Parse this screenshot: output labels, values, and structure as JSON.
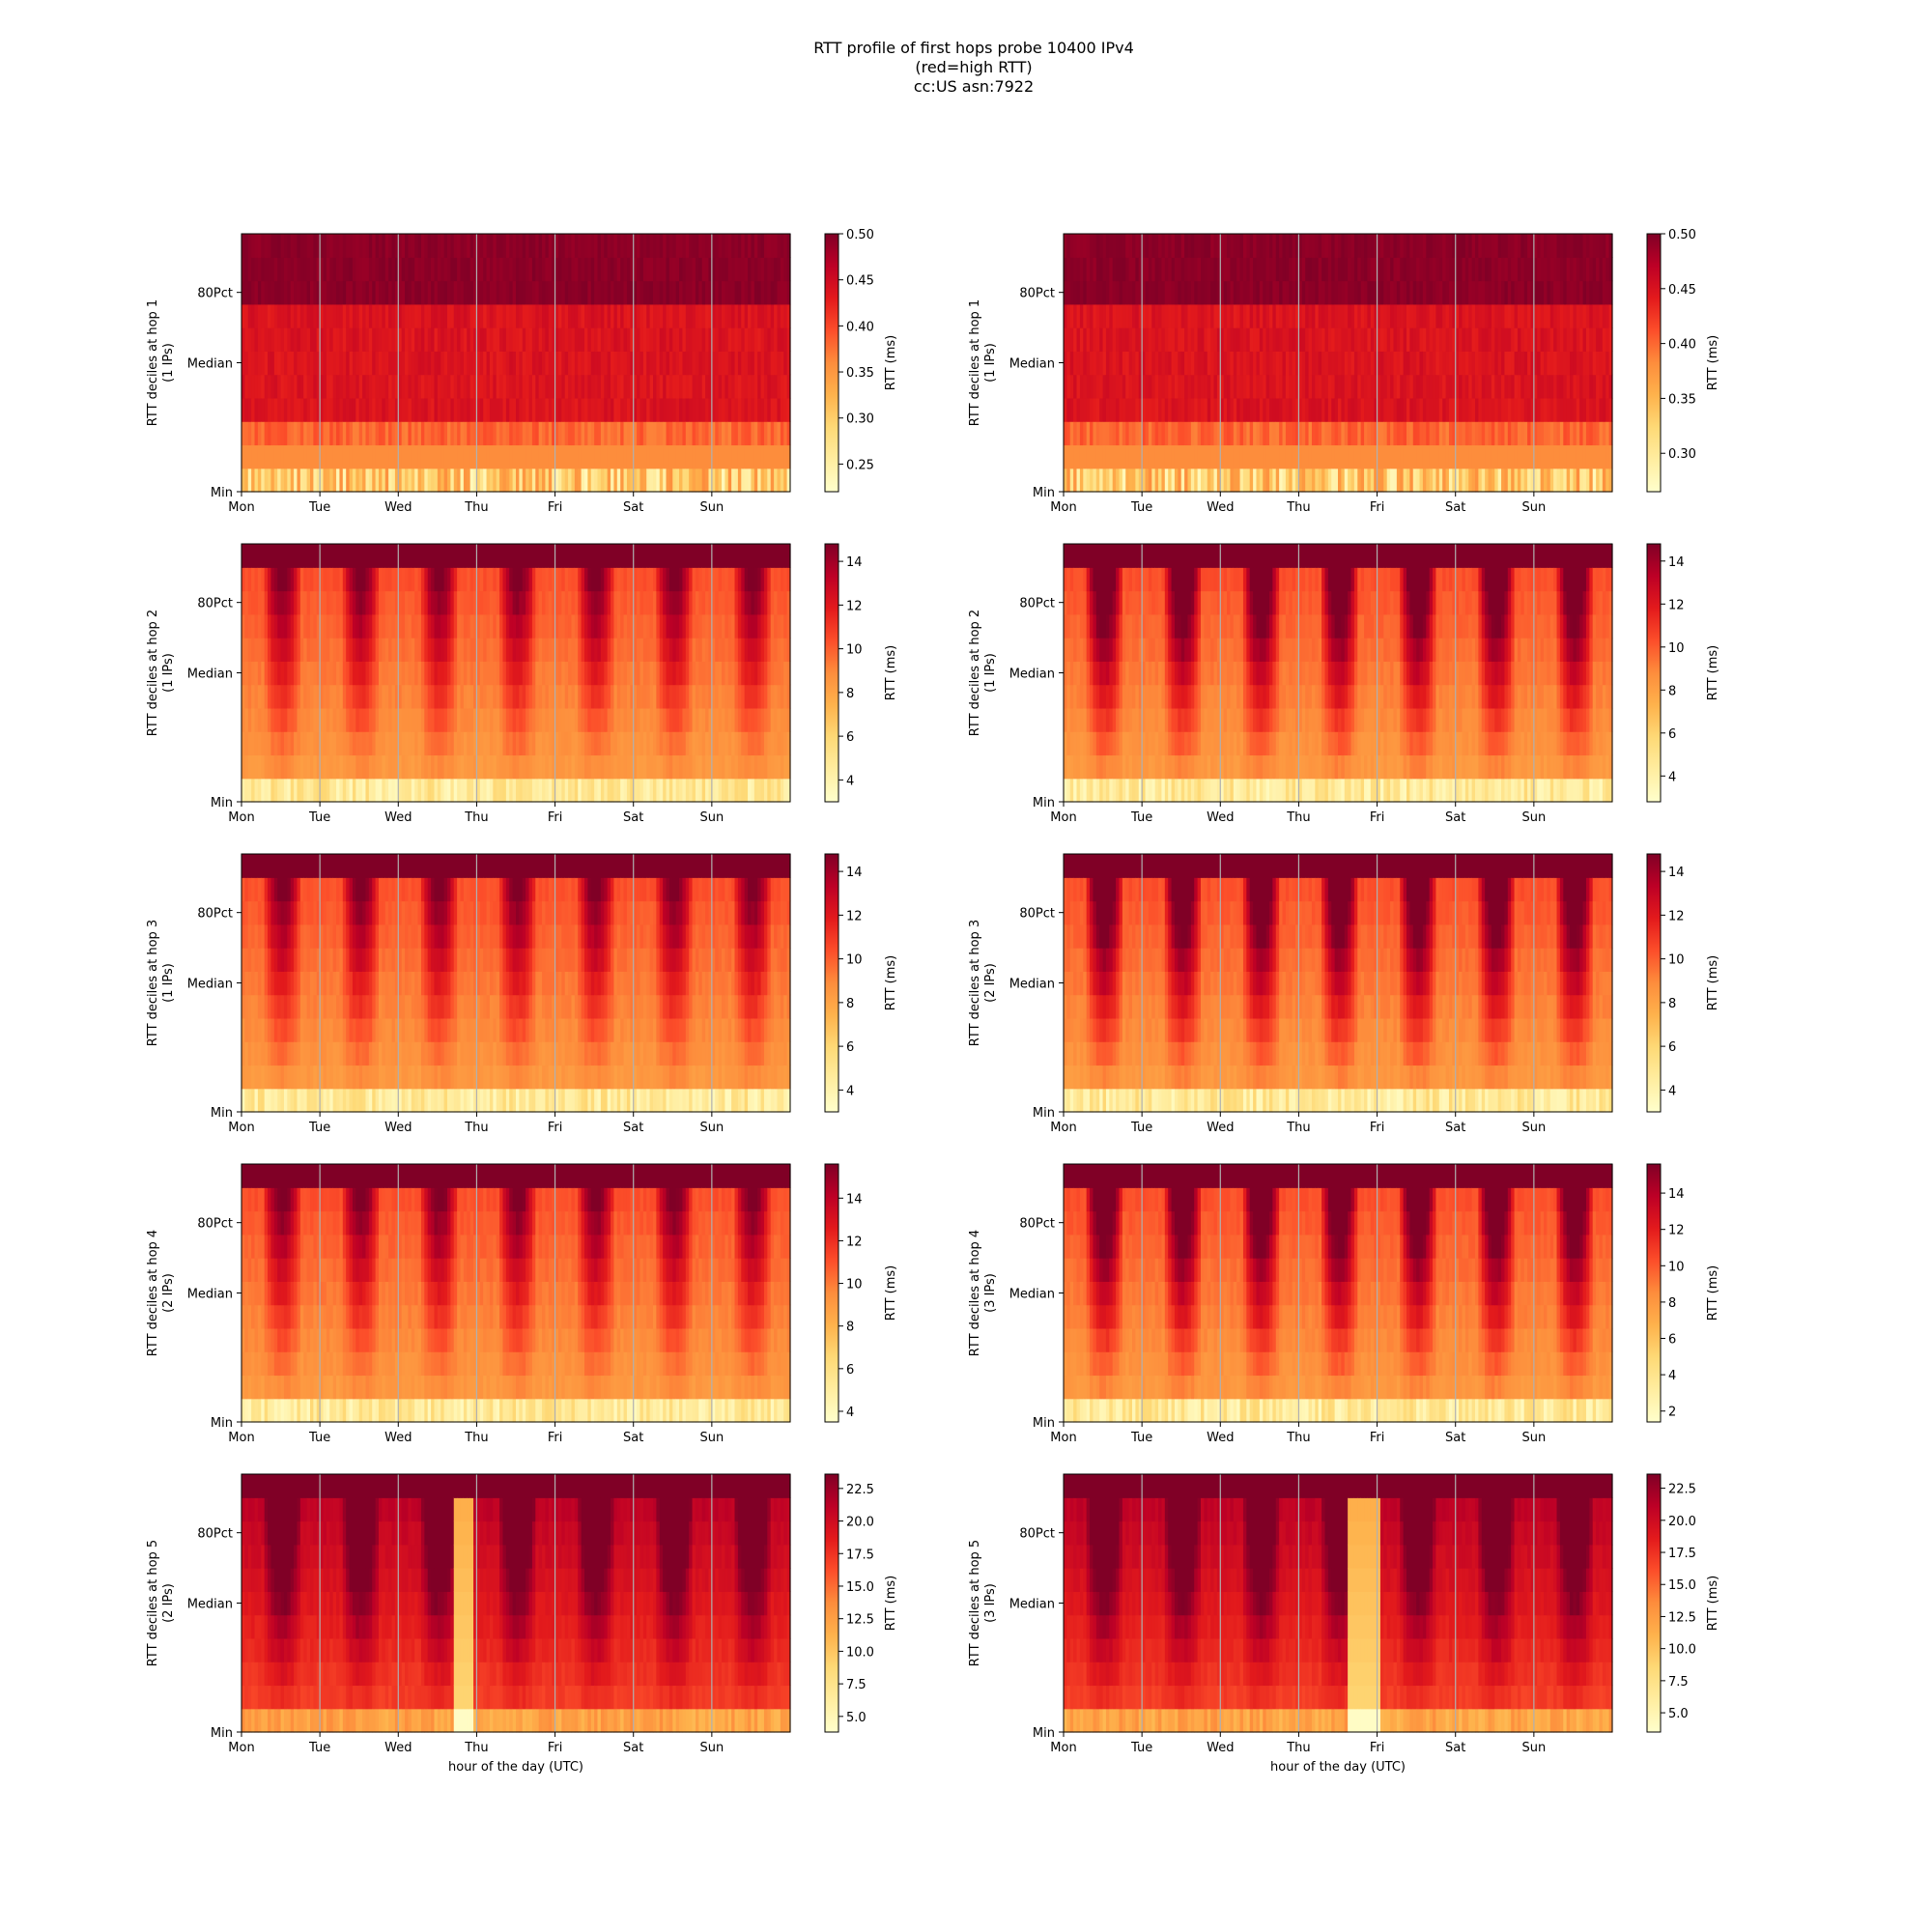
{
  "figure": {
    "title_lines": [
      "RTT profile of first hops probe 10400 IPv4",
      "(red=high RTT)",
      "cc:US asn:7922"
    ]
  },
  "chart_data": [
    {
      "type": "heatmap",
      "hop": 1,
      "ylabel_lines": [
        "RTT deciles at hop 1",
        "(1 IPs)"
      ],
      "cbar_label": "RTT (ms)",
      "cbar_ticks": [
        "0.25",
        "0.30",
        "0.35",
        "0.40",
        "0.45",
        "0.50"
      ],
      "vmin": 0.22,
      "vmax": 0.5,
      "x_ticks": [
        "Mon",
        "Tue",
        "Wed",
        "Thu",
        "Fri",
        "Sat",
        "Sun"
      ],
      "y_ticks": [
        "Min",
        "Median",
        "80Pct"
      ],
      "xlabel": "",
      "profile": "flat"
    },
    {
      "type": "heatmap",
      "hop": 1,
      "ylabel_lines": [
        "RTT deciles at hop 1",
        "(1 IPs)"
      ],
      "cbar_label": "RTT (ms)",
      "cbar_ticks": [
        "0.30",
        "0.35",
        "0.40",
        "0.45",
        "0.50"
      ],
      "vmin": 0.265,
      "vmax": 0.5,
      "x_ticks": [
        "Mon",
        "Tue",
        "Wed",
        "Thu",
        "Fri",
        "Sat",
        "Sun"
      ],
      "y_ticks": [
        "Min",
        "Median",
        "80Pct"
      ],
      "xlabel": "",
      "profile": "flat"
    },
    {
      "type": "heatmap",
      "hop": 2,
      "ylabel_lines": [
        "RTT deciles at hop 2",
        "(1 IPs)"
      ],
      "cbar_label": "RTT (ms)",
      "cbar_ticks": [
        "4",
        "6",
        "8",
        "10",
        "12",
        "14"
      ],
      "vmin": 3.0,
      "vmax": 14.8,
      "x_ticks": [
        "Mon",
        "Tue",
        "Wed",
        "Thu",
        "Fri",
        "Sat",
        "Sun"
      ],
      "y_ticks": [
        "Min",
        "Median",
        "80Pct"
      ],
      "xlabel": "",
      "profile": "diurnal"
    },
    {
      "type": "heatmap",
      "hop": 2,
      "ylabel_lines": [
        "RTT deciles at hop 2",
        "(1 IPs)"
      ],
      "cbar_label": "RTT (ms)",
      "cbar_ticks": [
        "4",
        "6",
        "8",
        "10",
        "12",
        "14"
      ],
      "vmin": 2.8,
      "vmax": 14.8,
      "x_ticks": [
        "Mon",
        "Tue",
        "Wed",
        "Thu",
        "Fri",
        "Sat",
        "Sun"
      ],
      "y_ticks": [
        "Min",
        "Median",
        "80Pct"
      ],
      "xlabel": "",
      "profile": "diurnal-strong"
    },
    {
      "type": "heatmap",
      "hop": 3,
      "ylabel_lines": [
        "RTT deciles at hop 3",
        "(1 IPs)"
      ],
      "cbar_label": "RTT (ms)",
      "cbar_ticks": [
        "4",
        "6",
        "8",
        "10",
        "12",
        "14"
      ],
      "vmin": 3.0,
      "vmax": 14.8,
      "x_ticks": [
        "Mon",
        "Tue",
        "Wed",
        "Thu",
        "Fri",
        "Sat",
        "Sun"
      ],
      "y_ticks": [
        "Min",
        "Median",
        "80Pct"
      ],
      "xlabel": "",
      "profile": "diurnal"
    },
    {
      "type": "heatmap",
      "hop": 3,
      "ylabel_lines": [
        "RTT deciles at hop 3",
        "(2 IPs)"
      ],
      "cbar_label": "RTT (ms)",
      "cbar_ticks": [
        "4",
        "6",
        "8",
        "10",
        "12",
        "14"
      ],
      "vmin": 3.0,
      "vmax": 14.8,
      "x_ticks": [
        "Mon",
        "Tue",
        "Wed",
        "Thu",
        "Fri",
        "Sat",
        "Sun"
      ],
      "y_ticks": [
        "Min",
        "Median",
        "80Pct"
      ],
      "xlabel": "",
      "profile": "diurnal-strong"
    },
    {
      "type": "heatmap",
      "hop": 4,
      "ylabel_lines": [
        "RTT deciles at hop 4",
        "(2 IPs)"
      ],
      "cbar_label": "RTT (ms)",
      "cbar_ticks": [
        "4",
        "6",
        "8",
        "10",
        "12",
        "14"
      ],
      "vmin": 3.5,
      "vmax": 15.6,
      "x_ticks": [
        "Mon",
        "Tue",
        "Wed",
        "Thu",
        "Fri",
        "Sat",
        "Sun"
      ],
      "y_ticks": [
        "Min",
        "Median",
        "80Pct"
      ],
      "xlabel": "",
      "profile": "diurnal"
    },
    {
      "type": "heatmap",
      "hop": 4,
      "ylabel_lines": [
        "RTT deciles at hop 4",
        "(3 IPs)"
      ],
      "cbar_label": "RTT (ms)",
      "cbar_ticks": [
        "2",
        "4",
        "6",
        "8",
        "10",
        "12",
        "14"
      ],
      "vmin": 1.4,
      "vmax": 15.6,
      "x_ticks": [
        "Mon",
        "Tue",
        "Wed",
        "Thu",
        "Fri",
        "Sat",
        "Sun"
      ],
      "y_ticks": [
        "Min",
        "Median",
        "80Pct"
      ],
      "xlabel": "",
      "profile": "diurnal-strong"
    },
    {
      "type": "heatmap",
      "hop": 5,
      "ylabel_lines": [
        "RTT deciles at hop 5",
        "(2 IPs)"
      ],
      "cbar_label": "RTT (ms)",
      "cbar_ticks": [
        "5.0",
        "7.5",
        "10.0",
        "12.5",
        "15.0",
        "17.5",
        "20.0",
        "22.5"
      ],
      "vmin": 3.8,
      "vmax": 23.6,
      "x_ticks": [
        "Mon",
        "Tue",
        "Wed",
        "Thu",
        "Fri",
        "Sat",
        "Sun"
      ],
      "y_ticks": [
        "Min",
        "Median",
        "80Pct"
      ],
      "xlabel": "hour of the day (UTC)",
      "profile": "diurnal-high",
      "low_band_days": [
        2.7,
        2.92
      ]
    },
    {
      "type": "heatmap",
      "hop": 5,
      "ylabel_lines": [
        "RTT deciles at hop 5",
        "(3 IPs)"
      ],
      "cbar_label": "RTT (ms)",
      "cbar_ticks": [
        "5.0",
        "7.5",
        "10.0",
        "12.5",
        "15.0",
        "17.5",
        "20.0",
        "22.5"
      ],
      "vmin": 3.5,
      "vmax": 23.6,
      "x_ticks": [
        "Mon",
        "Tue",
        "Wed",
        "Thu",
        "Fri",
        "Sat",
        "Sun"
      ],
      "y_ticks": [
        "Min",
        "Median",
        "80Pct"
      ],
      "xlabel": "hour of the day (UTC)",
      "profile": "diurnal-high",
      "low_band_days": [
        3.62,
        4.0
      ]
    }
  ]
}
